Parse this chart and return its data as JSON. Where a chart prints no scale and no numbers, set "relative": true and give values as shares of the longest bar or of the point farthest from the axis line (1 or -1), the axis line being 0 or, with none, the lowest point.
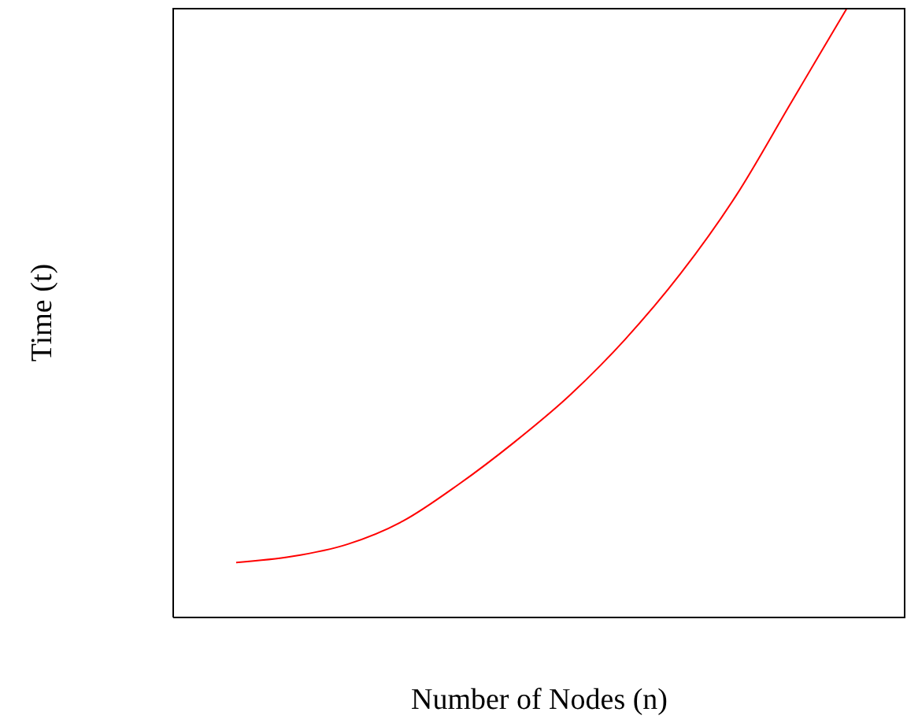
{
  "chart_data": {
    "type": "line",
    "xlabel": "Number of Nodes (n)",
    "ylabel": "Time (t)",
    "relative": true,
    "tick_labels": false,
    "grid": false,
    "legend": false,
    "marker": "none",
    "categories": [
      null,
      null,
      null,
      null,
      null,
      null,
      null,
      null,
      null,
      null,
      null,
      null
    ],
    "series": [
      {
        "color": "#ff0000",
        "values": [
          0.09,
          0.1,
          0.12,
          0.158,
          0.218,
          0.287,
          0.364,
          0.456,
          0.564,
          0.692,
          0.846,
          1.0
        ]
      }
    ]
  }
}
